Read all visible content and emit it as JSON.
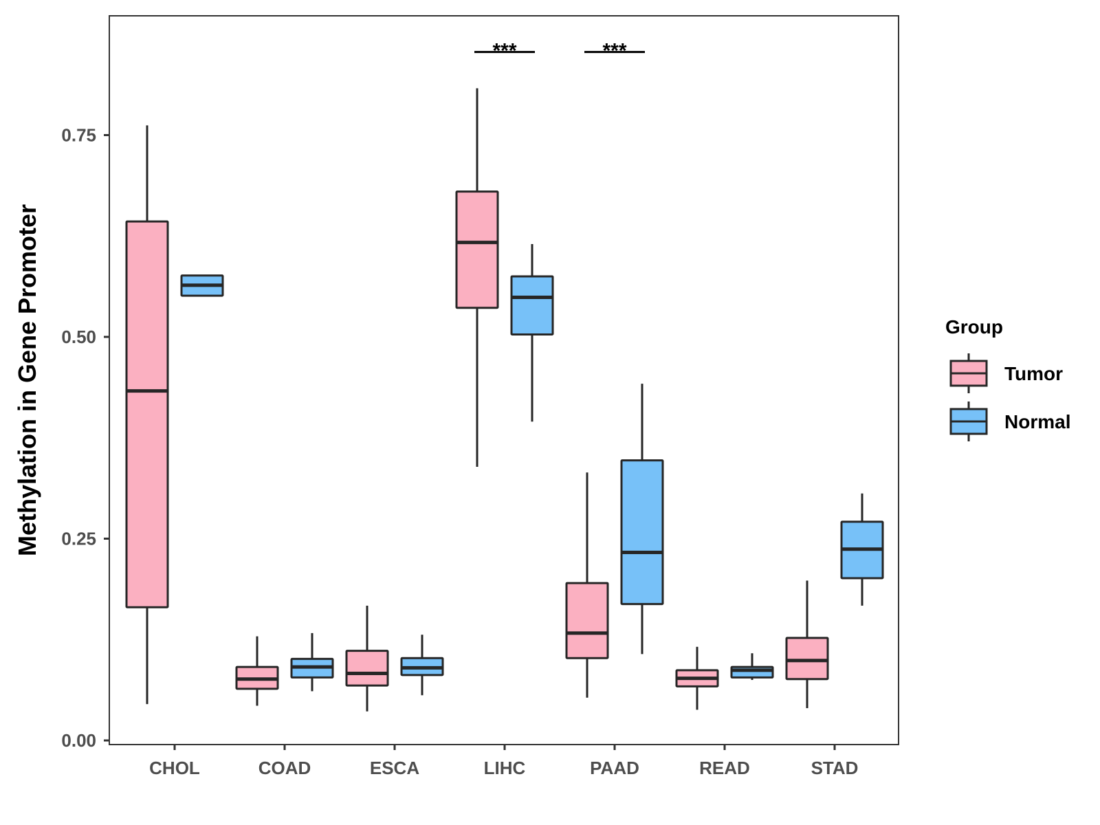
{
  "chart_data": {
    "type": "boxplot",
    "title": "",
    "xlabel": "",
    "ylabel": "Methylation in Gene Promoter",
    "ylim": [
      0,
      0.9
    ],
    "yticks": [
      "0.00",
      "0.25",
      "0.50",
      "0.75"
    ],
    "ytick_values": [
      0,
      0.25,
      0.5,
      0.75
    ],
    "categories": [
      "CHOL",
      "COAD",
      "ESCA",
      "LIHC",
      "PAAD",
      "READ",
      "STAD"
    ],
    "legend": {
      "title": "Group",
      "placement": "right",
      "entries": [
        "Tumor",
        "Normal"
      ]
    },
    "colors": {
      "Tumor": "#FBB0C1",
      "Normal": "#77C1F8",
      "line": "#262626"
    },
    "series": [
      {
        "name": "Tumor",
        "boxes": [
          {
            "min": 0.045,
            "q1": 0.165,
            "median": 0.433,
            "q3": 0.643,
            "max": 0.762
          },
          {
            "min": 0.043,
            "q1": 0.064,
            "median": 0.076,
            "q3": 0.091,
            "max": 0.129
          },
          {
            "min": 0.036,
            "q1": 0.068,
            "median": 0.083,
            "q3": 0.111,
            "max": 0.167
          },
          {
            "min": 0.339,
            "q1": 0.536,
            "median": 0.617,
            "q3": 0.68,
            "max": 0.808
          },
          {
            "min": 0.053,
            "q1": 0.102,
            "median": 0.133,
            "q3": 0.195,
            "max": 0.332
          },
          {
            "min": 0.038,
            "q1": 0.067,
            "median": 0.077,
            "q3": 0.087,
            "max": 0.116
          },
          {
            "min": 0.04,
            "q1": 0.076,
            "median": 0.099,
            "q3": 0.127,
            "max": 0.198
          }
        ]
      },
      {
        "name": "Normal",
        "boxes": [
          {
            "min": 0.551,
            "q1": 0.551,
            "median": 0.564,
            "q3": 0.576,
            "max": 0.576
          },
          {
            "min": 0.061,
            "q1": 0.078,
            "median": 0.091,
            "q3": 0.101,
            "max": 0.133
          },
          {
            "min": 0.056,
            "q1": 0.081,
            "median": 0.09,
            "q3": 0.102,
            "max": 0.131
          },
          {
            "min": 0.395,
            "q1": 0.503,
            "median": 0.549,
            "q3": 0.575,
            "max": 0.615
          },
          {
            "min": 0.107,
            "q1": 0.169,
            "median": 0.233,
            "q3": 0.347,
            "max": 0.442
          },
          {
            "min": 0.075,
            "q1": 0.078,
            "median": 0.087,
            "q3": 0.091,
            "max": 0.108
          },
          {
            "min": 0.167,
            "q1": 0.201,
            "median": 0.237,
            "q3": 0.271,
            "max": 0.306
          }
        ]
      }
    ],
    "annotations": [
      {
        "category": "LIHC",
        "label": "***",
        "y": 0.853
      },
      {
        "category": "PAAD",
        "label": "***",
        "y": 0.853
      }
    ]
  }
}
